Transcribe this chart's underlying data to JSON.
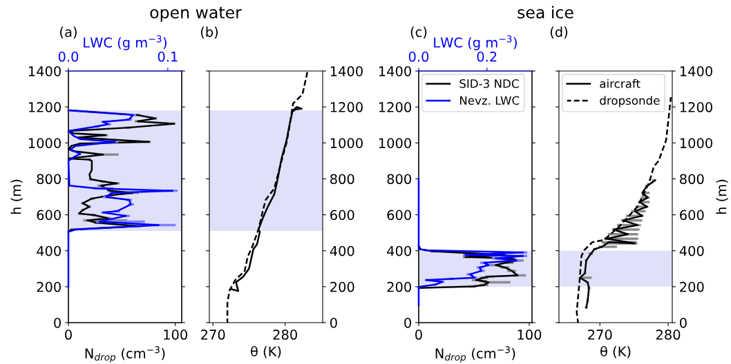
{
  "chart_data": [
    {
      "type": "line",
      "title": "(a)",
      "ylabel": "h (m)",
      "xlabel": "N$_{drop}$ (cm$^{−3}$)",
      "x2label": "LWC (g m$^{−3}$)",
      "annotations": [
        "open water"
      ],
      "xlim": [
        0,
        106
      ],
      "xticks": [
        0,
        100
      ],
      "x2lim": [
        0,
        0.114
      ],
      "x2ticks": [
        {
          "value": 0,
          "label": "0.0"
        },
        {
          "value": 0.1,
          "label": "0.1"
        }
      ],
      "ylim": [
        0,
        1400
      ],
      "yticks": [
        0,
        200,
        400,
        600,
        800,
        1000,
        1200,
        1400
      ],
      "grid": false,
      "marker": "none",
      "bands": [
        {
          "axis": "y",
          "from": 510,
          "to": 1180,
          "color": "#e0e0fb"
        }
      ],
      "series": [
        {
          "color": "#000000",
          "line_style": "solid",
          "values": [
            505,
            518,
            537,
            556,
            569,
            581,
            598,
            607,
            626,
            645,
            664,
            690,
            709,
            722,
            734,
            762,
            775,
            785,
            798,
            824,
            849,
            900,
            907,
            913,
            935,
            954,
            964,
            983,
            996,
            1006,
            1021,
            1030,
            1043,
            1053,
            1066,
            1085,
            1107,
            1120,
            1136,
            1155,
            1181
          ],
          "x": [
            0,
            2.6,
            64.8,
            26,
            17.6,
            37,
            24,
            10,
            13.3,
            19.7,
            13.3,
            21.9,
            39,
            60.5,
            39,
            30.5,
            45.5,
            32.6,
            20.8,
            19.7,
            21.9,
            21.9,
            19.7,
            0.4,
            32.6,
            4.7,
            0.4,
            2.6,
            11,
            75.5,
            32.6,
            9,
            34.8,
            4.7,
            0.4,
            56,
            99,
            64.8,
            81.5,
            64.8,
            2.6
          ],
          "xerrors": [
            null,
            null,
            [
              60,
              68
            ],
            [
              24,
              30
            ],
            [
              14,
              55
            ],
            [
              33,
              40
            ],
            [
              22,
              26
            ],
            [
              9,
              12
            ],
            [
              12,
              15
            ],
            [
              18,
              21
            ],
            [
              12,
              15
            ],
            [
              20,
              24
            ],
            [
              37,
              42
            ],
            [
              55,
              66
            ],
            [
              36,
              42
            ],
            [
              27,
              34
            ],
            [
              42,
              48
            ],
            [
              30,
              35
            ],
            [
              19,
              22
            ],
            null,
            null,
            null,
            [
              18,
              21
            ],
            null,
            [
              30,
              47
            ],
            null,
            null,
            null,
            [
              10,
              12
            ],
            [
              70,
              77
            ],
            [
              30,
              35
            ],
            [
              8,
              10
            ],
            [
              30,
              37
            ],
            null,
            null,
            [
              53,
              59
            ],
            [
              96,
              100
            ],
            [
              62,
              68
            ],
            [
              78,
              83
            ],
            [
              62,
              67
            ],
            null
          ]
        },
        {
          "color": "#0000ff",
          "line_style": "solid",
          "axis": "x2",
          "values": [
            199,
            505,
            518,
            543,
            562,
            594,
            613,
            620,
            658,
            683,
            699,
            722,
            734,
            747,
            762,
            900,
            926,
            938,
            964,
            983,
            1006,
            1021,
            1040,
            1066,
            1091,
            1104,
            1117,
            1130,
            1155,
            1181
          ],
          "x": [
            0,
            0,
            0.007,
            0.091,
            0.031,
            0.058,
            0.035,
            0.049,
            0.063,
            0.061,
            0.038,
            0.044,
            0.105,
            0.028,
            0.001,
            0,
            0.007,
            0.012,
            0.002,
            0.007,
            0.047,
            0.012,
            0.005,
            0,
            0.028,
            0.04,
            0.035,
            0.061,
            0.065,
            0
          ],
          "xerrors": [
            null,
            null,
            null,
            [
              0.085,
              0.108
            ],
            [
              0.028,
              0.077
            ],
            [
              0.054,
              0.062
            ],
            [
              0.033,
              0.038
            ],
            [
              0.046,
              0.052
            ],
            [
              0.06,
              0.066
            ],
            [
              0.058,
              0.064
            ],
            [
              0.035,
              0.041
            ],
            [
              0.041,
              0.047
            ],
            [
              0.098,
              0.11
            ],
            [
              0.025,
              0.045
            ],
            null,
            null,
            null,
            null,
            null,
            null,
            [
              0.044,
              0.05
            ],
            null,
            null,
            null,
            [
              0.026,
              0.031
            ],
            [
              0.037,
              0.043
            ],
            [
              0.033,
              0.038
            ],
            [
              0.058,
              0.064
            ],
            [
              0.062,
              0.068
            ],
            null
          ]
        }
      ]
    },
    {
      "type": "line",
      "title": "(b)",
      "xlabel": "θ (K)",
      "xlim": [
        269.5,
        285.2
      ],
      "xticks": [
        270,
        280
      ],
      "y2lim": [
        0,
        1400
      ],
      "y2ticks": [
        0,
        200,
        400,
        600,
        800,
        1000,
        1200,
        1400
      ],
      "grid": false,
      "marker": "none",
      "bands": [
        {
          "axis": "y2",
          "from": 510,
          "to": 1180,
          "color": "#e0e0fb"
        }
      ],
      "series": [
        {
          "color": "#000000",
          "line_style": "solid",
          "axis": "y2",
          "values": [
            186,
            176,
            224,
            256,
            301,
            409,
            435,
            505,
            518,
            581,
            645,
            715,
            785,
            913,
            1015,
            1079,
            1174,
            1187,
            1190,
            1200,
            1181
          ],
          "x": [
            272.6,
            273.5,
            273.2,
            274.2,
            275.0,
            275.6,
            276.1,
            276.5,
            276.3,
            276.9,
            277.6,
            278.5,
            278.9,
            279.5,
            280.2,
            280.5,
            281.0,
            281.5,
            282.3,
            281.6,
            281.1
          ]
        },
        {
          "color": "#000000",
          "line_style": "dashed",
          "axis": "y2",
          "values": [
            0,
            110,
            180,
            237,
            288,
            365,
            428,
            518,
            620,
            683,
            747,
            824,
            900,
            1002,
            1066,
            1142,
            1219,
            1270,
            1397
          ],
          "x": [
            272.0,
            272.0,
            272.3,
            273.1,
            274.4,
            274.8,
            275.5,
            276.3,
            276.9,
            277.3,
            278.5,
            279.0,
            279.5,
            280.2,
            280.5,
            280.8,
            281.1,
            282.4,
            283.1
          ]
        }
      ]
    },
    {
      "type": "line",
      "title": "(c)",
      "xlabel": "N$_{drop}$ (cm$^{−3}$)",
      "x2label": "LWC (g m$^{−3}$)",
      "annotations": [
        "sea ice"
      ],
      "xlim": [
        0,
        102.5
      ],
      "xticks": [
        0,
        100
      ],
      "x2lim": [
        0,
        0.332
      ],
      "x2ticks": [
        {
          "value": 0,
          "label": "0.0"
        },
        {
          "value": 0.2,
          "label": "0.2"
        }
      ],
      "ylim": [
        0,
        1400
      ],
      "yticks": [
        0,
        200,
        400,
        600,
        800,
        1000,
        1200,
        1400
      ],
      "grid": false,
      "marker": "none",
      "legend": "top left",
      "bands": [
        {
          "axis": "y",
          "from": 200,
          "to": 400,
          "color": "#e0e0fb"
        }
      ],
      "series": [
        {
          "name": "SID-3 NDC",
          "color": "#000000",
          "line_style": "solid",
          "values": [
            193,
            201,
            209,
            224,
            231,
            237,
            250,
            256,
            263,
            288,
            307,
            320,
            333,
            346,
            358,
            365,
            377,
            397,
            409,
            428
          ],
          "x": [
            0,
            48.6,
            59.1,
            63.3,
            58.1,
            51.8,
            59.1,
            63.3,
            89.5,
            84.3,
            78.0,
            69.6,
            78.0,
            90.6,
            82.2,
            42.3,
            78.0,
            13.0,
            1.5,
            0
          ],
          "xerrors": [
            null,
            [
              45,
              52
            ],
            [
              55,
              63
            ],
            [
              58,
              83
            ],
            [
              55,
              62
            ],
            [
              48,
              56
            ],
            [
              55,
              63
            ],
            [
              60,
              68
            ],
            [
              85,
              97
            ],
            [
              80,
              88
            ],
            [
              74,
              82
            ],
            [
              66,
              74
            ],
            [
              74,
              86
            ],
            [
              86,
              95
            ],
            [
              78,
              87
            ],
            [
              40,
              46
            ],
            null,
            [
              10,
              16
            ],
            null,
            null
          ]
        },
        {
          "name": "Nevz. LWC",
          "color": "#0000ff",
          "line_style": "solid",
          "axis": "x2",
          "values": [
            97,
            199,
            212,
            227,
            237,
            244,
            250,
            269,
            288,
            307,
            320,
            333,
            346,
            358,
            371,
            377,
            390,
            403,
            409,
            798
          ],
          "x": [
            0,
            0,
            0.049,
            0.069,
            0.022,
            0.096,
            0.164,
            0.15,
            0.184,
            0.178,
            0.205,
            0.191,
            0.286,
            0.225,
            0.306,
            0.137,
            0.306,
            0.022,
            0,
            0
          ],
          "xerrors": [
            [
              0,
              0
            ],
            [
              0,
              0
            ],
            [
              0.045,
              0.053
            ],
            [
              0.06,
              0.075
            ],
            [
              0.018,
              0.03
            ],
            [
              0.09,
              0.104
            ],
            [
              0.155,
              0.172
            ],
            [
              0.14,
              0.16
            ],
            [
              0.175,
              0.194
            ],
            [
              0.17,
              0.19
            ],
            [
              0.195,
              0.215
            ],
            [
              0.18,
              0.2
            ],
            [
              0.275,
              0.298
            ],
            [
              0.215,
              0.235
            ],
            [
              0.295,
              0.318
            ],
            [
              0.13,
              0.145
            ],
            [
              0.295,
              0.318
            ],
            [
              0.018,
              0.026
            ],
            [
              0,
              0
            ],
            [
              0,
              0
            ]
          ]
        }
      ]
    },
    {
      "type": "line",
      "title": "(d)",
      "xlabel": "θ (K)",
      "y2label": "h (m)",
      "xlim": [
        264.0,
        280.6
      ],
      "xticks": [
        270,
        280
      ],
      "y2lim": [
        0,
        1400
      ],
      "y2ticks": [
        0,
        200,
        400,
        600,
        800,
        1000,
        1200,
        1400
      ],
      "grid": false,
      "marker": "none",
      "legend": "top left",
      "bands": [
        {
          "axis": "y2",
          "from": 200,
          "to": 400,
          "color": "#e0e0fb"
        }
      ],
      "series": [
        {
          "name": "aircraft",
          "color": "#000000",
          "line_style": "solid",
          "axis": "y2",
          "values": [
            84,
            122,
            193,
            224,
            250,
            275,
            346,
            384,
            409,
            422,
            448,
            441,
            467,
            492,
            518,
            543,
            569,
            594,
            620,
            645,
            671,
            696,
            722,
            760,
            792
          ],
          "x": [
            268.0,
            268.2,
            268.4,
            268.2,
            267.1,
            267.8,
            268.0,
            268.7,
            269.2,
            270.3,
            271.3,
            275.1,
            271.0,
            274.1,
            272.0,
            275.5,
            273.4,
            276.2,
            275.1,
            276.9,
            275.8,
            277.0,
            276.2,
            276.9,
            278.1
          ],
          "xerrors": [
            [
              267.8,
              268.2
            ],
            [
              268.0,
              268.4
            ],
            [
              268.2,
              268.6
            ],
            [
              268.0,
              268.4
            ],
            [
              267.0,
              268.8
            ],
            [
              267.6,
              268.0
            ],
            [
              267.8,
              268.2
            ],
            [
              268.3,
              269.0
            ],
            [
              269.0,
              269.6
            ],
            [
              269.8,
              272.5
            ],
            [
              270.2,
              275.4
            ],
            [
              270.5,
              275.5
            ],
            [
              270.6,
              275.6
            ],
            [
              271.2,
              275.6
            ],
            [
              271.8,
              275.8
            ],
            [
              272.5,
              276.0
            ],
            [
              273.1,
              276.2
            ],
            [
              273.8,
              276.4
            ],
            [
              274.6,
              276.7
            ],
            [
              275.2,
              277.1
            ],
            [
              275.6,
              277.3
            ],
            [
              276.0,
              277.3
            ],
            [
              276.2,
              277.3
            ],
            [
              276.6,
              277.0
            ],
            [
              277.6,
              278.2
            ]
          ]
        },
        {
          "name": "dropsonde",
          "color": "#000000",
          "line_style": "dashed",
          "axis": "y2",
          "values": [
            0,
            59,
            224,
            371,
            403,
            448,
            460,
            530,
            645,
            779,
            868,
            900,
            1015,
            1255
          ],
          "x": [
            266.8,
            266.6,
            267.0,
            267.3,
            267.7,
            268.9,
            270.6,
            272.7,
            275.5,
            277.2,
            277.9,
            278.6,
            279.7,
            280.4
          ]
        }
      ]
    }
  ]
}
